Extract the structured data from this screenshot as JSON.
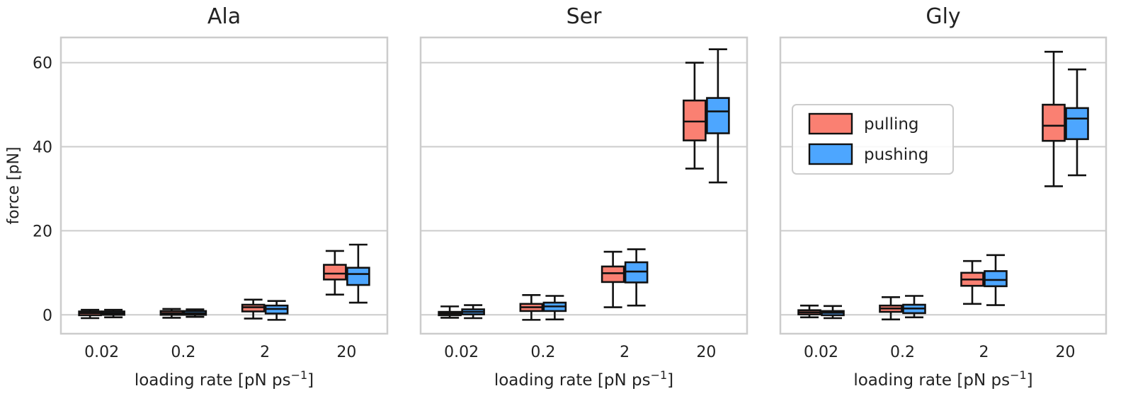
{
  "chart_data": {
    "type": "box",
    "ylabel": "force [pN]",
    "ylim": [
      -4.5,
      66
    ],
    "yticks": [
      0,
      20,
      40,
      60
    ],
    "grid": "horizontal",
    "legend": {
      "placement": "in third panel, upper middle",
      "entries": [
        {
          "label": "pulling",
          "color": "#fa8072"
        },
        {
          "label": "pushing",
          "color": "#4da6ff"
        }
      ]
    },
    "panels": [
      {
        "title": "Ala",
        "xlabel": "loading rate [pN ps",
        "xlabel_sup": "−1",
        "xlabel_close": "]",
        "categories": [
          "0.02",
          "0.2",
          "2",
          "20"
        ],
        "series": [
          {
            "name": "pulling",
            "boxes": [
              {
                "whislo": -0.8,
                "q1": -0.1,
                "med": 0.4,
                "q3": 0.8,
                "whishi": 1.2
              },
              {
                "whislo": -0.7,
                "q1": 0.0,
                "med": 0.4,
                "q3": 0.9,
                "whishi": 1.4
              },
              {
                "whislo": -0.9,
                "q1": 0.8,
                "med": 1.8,
                "q3": 2.4,
                "whishi": 3.6
              },
              {
                "whislo": 4.8,
                "q1": 8.4,
                "med": 9.8,
                "q3": 11.9,
                "whishi": 15.2
              }
            ]
          },
          {
            "name": "pushing",
            "boxes": [
              {
                "whislo": -0.6,
                "q1": 0.0,
                "med": 0.4,
                "q3": 0.8,
                "whishi": 1.2
              },
              {
                "whislo": -0.5,
                "q1": 0.0,
                "med": 0.4,
                "q3": 0.9,
                "whishi": 1.3
              },
              {
                "whislo": -1.2,
                "q1": 0.3,
                "med": 1.4,
                "q3": 2.2,
                "whishi": 3.3
              },
              {
                "whislo": 2.9,
                "q1": 7.1,
                "med": 9.7,
                "q3": 11.2,
                "whishi": 16.7
              }
            ]
          }
        ]
      },
      {
        "title": "Ser",
        "xlabel": "loading rate [pN ps",
        "xlabel_sup": "−1",
        "xlabel_close": "]",
        "categories": [
          "0.02",
          "0.2",
          "2",
          "20"
        ],
        "series": [
          {
            "name": "pulling",
            "boxes": [
              {
                "whislo": -0.7,
                "q1": -0.1,
                "med": 0.3,
                "q3": 0.7,
                "whishi": 2.0
              },
              {
                "whislo": -1.2,
                "q1": 0.9,
                "med": 1.8,
                "q3": 2.6,
                "whishi": 4.7
              },
              {
                "whislo": 1.8,
                "q1": 7.8,
                "med": 9.9,
                "q3": 11.5,
                "whishi": 15.0
              },
              {
                "whislo": 34.8,
                "q1": 41.5,
                "med": 46.0,
                "q3": 51.0,
                "whishi": 60.0
              }
            ]
          },
          {
            "name": "pushing",
            "boxes": [
              {
                "whislo": -0.8,
                "q1": 0.1,
                "med": 0.7,
                "q3": 1.3,
                "whishi": 2.3
              },
              {
                "whislo": -1.1,
                "q1": 0.9,
                "med": 2.0,
                "q3": 2.9,
                "whishi": 4.5
              },
              {
                "whislo": 2.2,
                "q1": 7.7,
                "med": 10.3,
                "q3": 12.5,
                "whishi": 15.6
              },
              {
                "whislo": 31.5,
                "q1": 43.2,
                "med": 48.4,
                "q3": 51.6,
                "whishi": 63.2
              }
            ]
          }
        ]
      },
      {
        "title": "Gly",
        "xlabel": "loading rate [pN ps",
        "xlabel_sup": "−1",
        "xlabel_close": "]",
        "categories": [
          "0.02",
          "0.2",
          "2",
          "20"
        ],
        "series": [
          {
            "name": "pulling",
            "boxes": [
              {
                "whislo": -0.6,
                "q1": 0.1,
                "med": 0.6,
                "q3": 1.1,
                "whishi": 2.2
              },
              {
                "whislo": -1.1,
                "q1": 0.7,
                "med": 1.5,
                "q3": 2.2,
                "whishi": 4.2
              },
              {
                "whislo": 2.6,
                "q1": 6.9,
                "med": 8.4,
                "q3": 10.0,
                "whishi": 12.8
              },
              {
                "whislo": 30.6,
                "q1": 41.4,
                "med": 45.0,
                "q3": 50.0,
                "whishi": 62.6
              }
            ]
          },
          {
            "name": "pushing",
            "boxes": [
              {
                "whislo": -0.8,
                "q1": -0.1,
                "med": 0.5,
                "q3": 0.9,
                "whishi": 2.1
              },
              {
                "whislo": -0.6,
                "q1": 0.4,
                "med": 1.5,
                "q3": 2.4,
                "whishi": 4.5
              },
              {
                "whislo": 2.3,
                "q1": 6.8,
                "med": 8.3,
                "q3": 10.4,
                "whishi": 14.2
              },
              {
                "whislo": 33.2,
                "q1": 41.8,
                "med": 46.7,
                "q3": 49.2,
                "whishi": 58.4
              }
            ]
          }
        ]
      }
    ]
  }
}
